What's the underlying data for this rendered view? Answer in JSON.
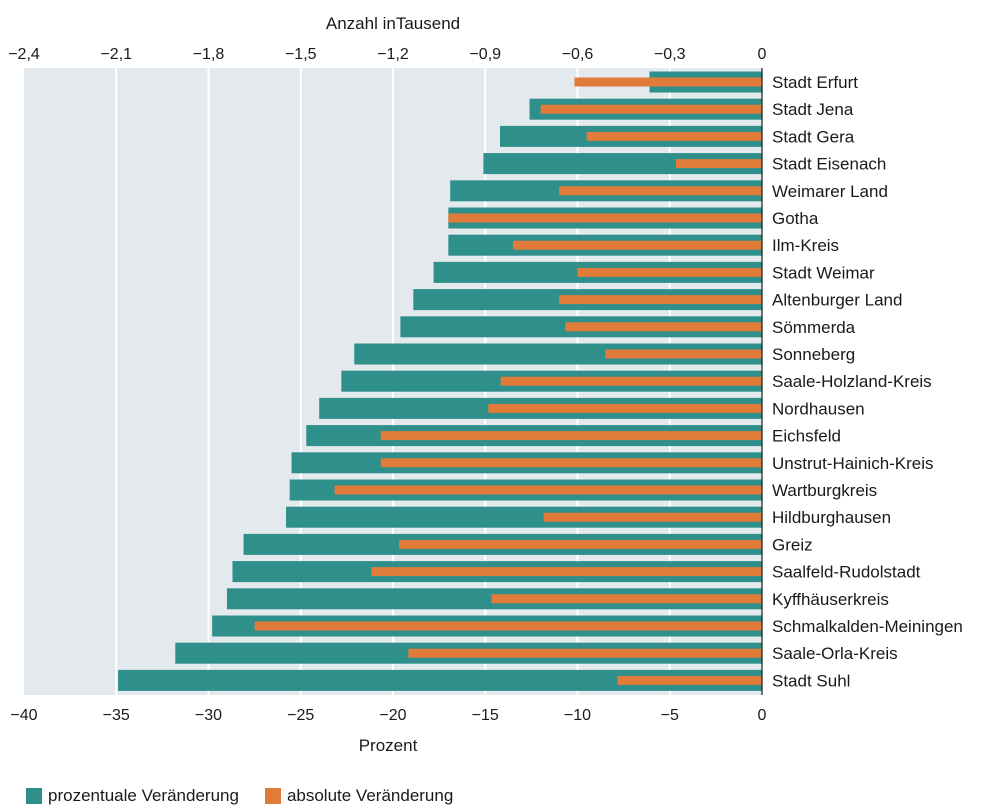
{
  "chart_data": {
    "type": "bar",
    "orientation": "horizontal",
    "top_axis_title": "Anzahl inTausend",
    "bottom_axis_title": "Prozent",
    "top_ticks": [
      "−2,4",
      "−2,1",
      "−1,8",
      "−1,5",
      "−1,2",
      "−0,9",
      "−0,6",
      "−0,3",
      "0"
    ],
    "bottom_ticks": [
      "−40",
      "−35",
      "−30",
      "−25",
      "−20",
      "−15",
      "−10",
      "−5",
      "0"
    ],
    "top_range": [
      -2.4,
      0
    ],
    "bottom_range": [
      -40,
      0
    ],
    "grid": true,
    "legend_position": "bottom-left",
    "categories": [
      "Stadt Erfurt",
      "Stadt Jena",
      "Stadt Gera",
      "Stadt Eisenach",
      "Weimarer Land",
      "Gotha",
      "Ilm-Kreis",
      "Stadt Weimar",
      "Altenburger Land",
      "Sömmerda",
      "Sonneberg",
      "Saale-Holzland-Kreis",
      "Nordhausen",
      "Eichsfeld",
      "Unstrut-Hainich-Kreis",
      "Wartburgkreis",
      "Hildburghausen",
      "Greiz",
      "Saalfeld-Rudolstadt",
      "Kyffhäuserkreis",
      "Schmalkalden-Meiningen",
      "Saale-Orla-Kreis",
      "Stadt Suhl"
    ],
    "series": [
      {
        "name": "prozentuale Veränderung",
        "axis": "bottom",
        "color": "#2f8f8a",
        "values": [
          -6.1,
          -12.6,
          -14.2,
          -15.1,
          -16.9,
          -17.0,
          -17.0,
          -17.8,
          -18.9,
          -19.6,
          -22.1,
          -22.8,
          -24.0,
          -24.7,
          -25.5,
          -25.6,
          -25.8,
          -28.1,
          -28.7,
          -29.0,
          -29.8,
          -31.8,
          -34.9
        ]
      },
      {
        "name": "absolute Veränderung",
        "axis": "top",
        "color": "#e07b39",
        "values": [
          -0.61,
          -0.72,
          -0.57,
          -0.28,
          -0.66,
          -1.02,
          -0.81,
          -0.6,
          -0.66,
          -0.64,
          -0.51,
          -0.85,
          -0.89,
          -1.24,
          -1.24,
          -1.39,
          -0.71,
          -1.18,
          -1.27,
          -0.88,
          -1.65,
          -1.15,
          -0.47
        ]
      }
    ]
  },
  "legend": {
    "items": [
      {
        "label": "prozentuale Veränderung",
        "color": "#2f8f8a"
      },
      {
        "label": "absolute Veränderung",
        "color": "#e07b39"
      }
    ]
  }
}
